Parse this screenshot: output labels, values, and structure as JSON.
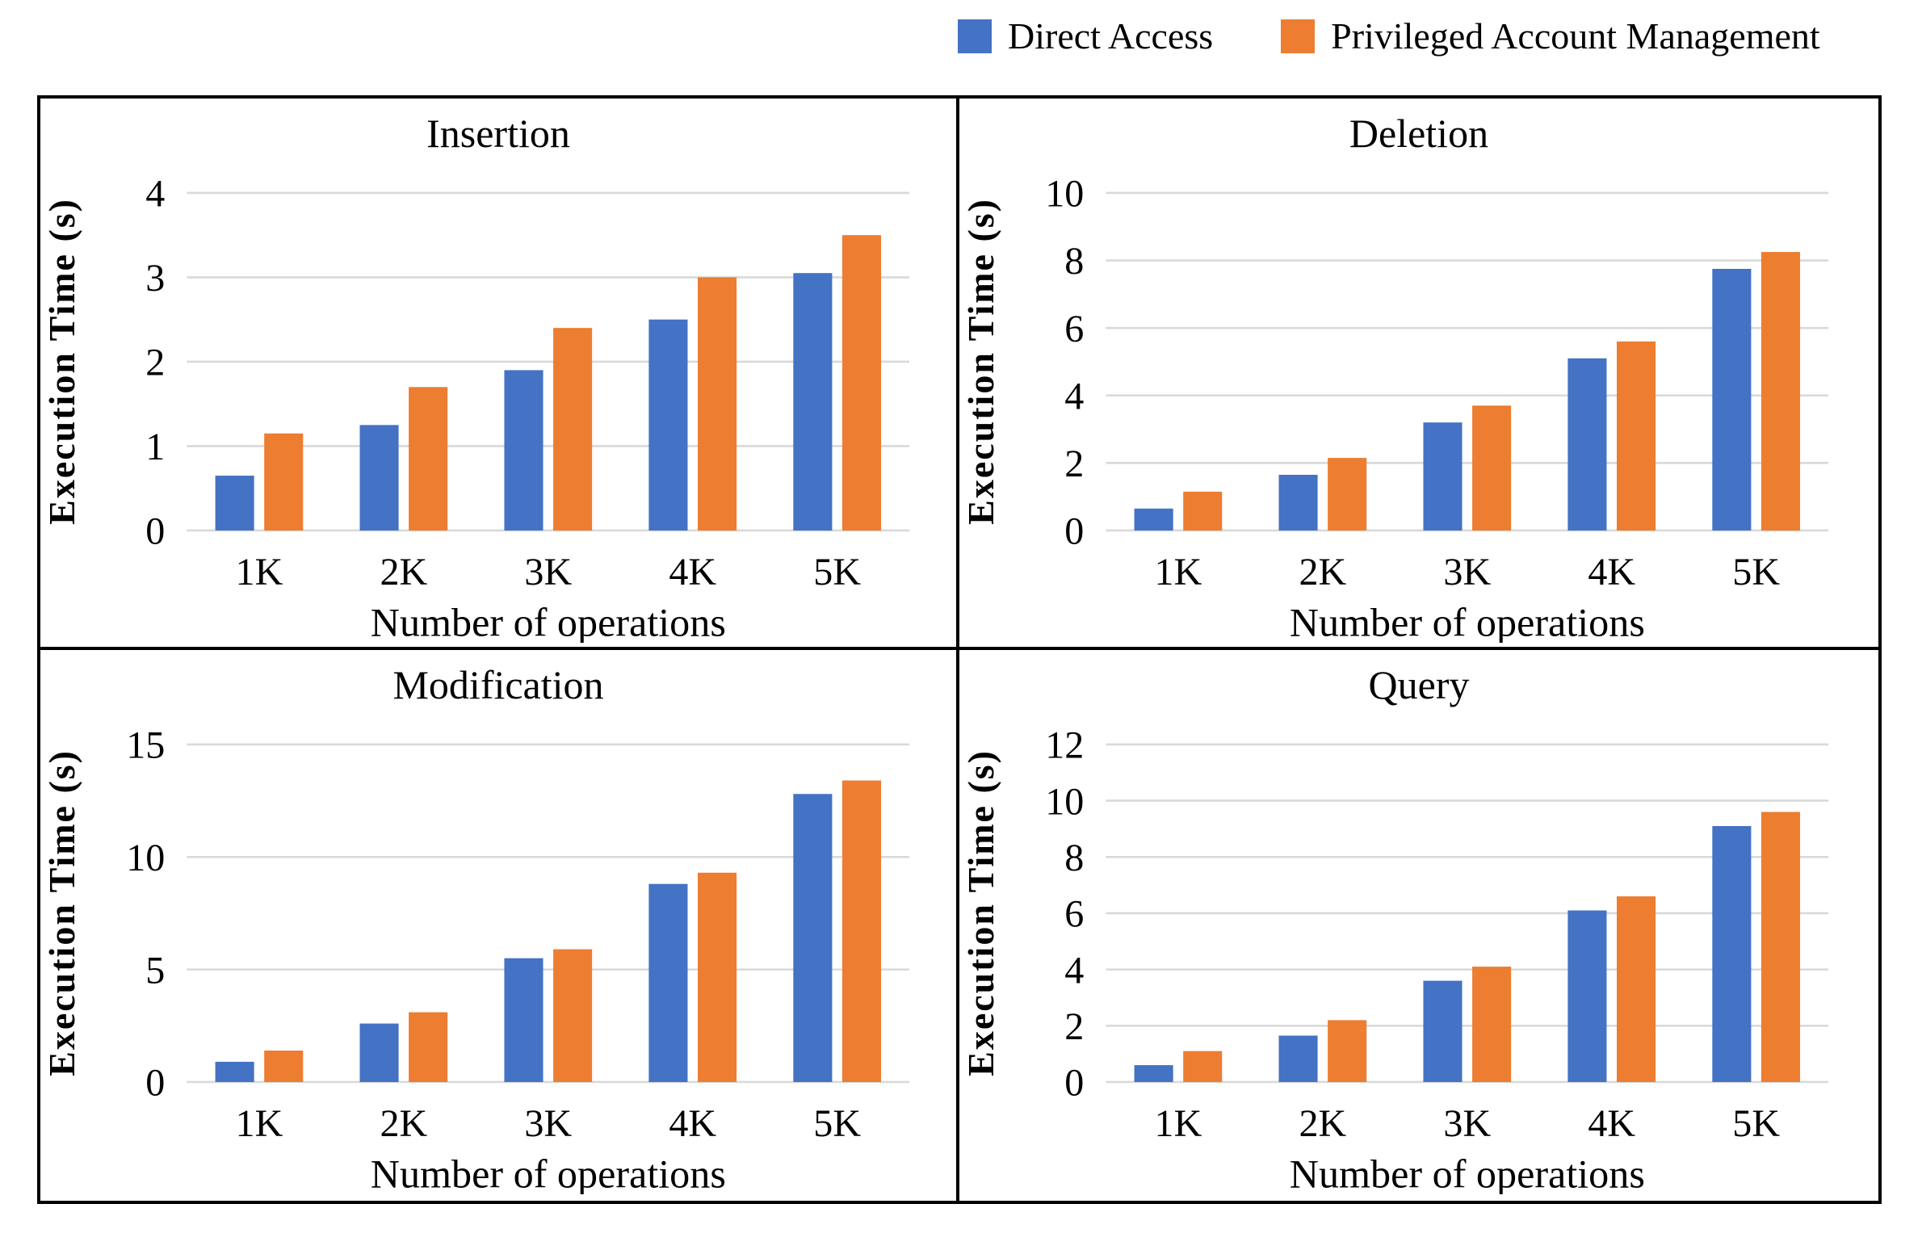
{
  "legend": {
    "items": [
      {
        "label": "Direct Access",
        "color": "#4472C4"
      },
      {
        "label": "Privileged Account Management",
        "color": "#ED7D31"
      }
    ]
  },
  "styles": {
    "series_colors": [
      "#4472C4",
      "#ED7D31"
    ],
    "gridline_color": "#D9D9D9",
    "frame_color": "#000000"
  },
  "chart_data": [
    {
      "type": "bar",
      "title": "Insertion",
      "xlabel": "Number of operations",
      "ylabel": "Execution Time (s)",
      "categories": [
        "1K",
        "2K",
        "3K",
        "4K",
        "5K"
      ],
      "ylim": [
        0,
        4
      ],
      "yticks": [
        0,
        1,
        2,
        3,
        4
      ],
      "grid": "horizontal",
      "legend_position": "top",
      "series": [
        {
          "name": "Direct Access",
          "values": [
            0.65,
            1.25,
            1.9,
            2.5,
            3.05
          ]
        },
        {
          "name": "Privileged Account Management",
          "values": [
            1.15,
            1.7,
            2.4,
            3.0,
            3.5
          ]
        }
      ]
    },
    {
      "type": "bar",
      "title": "Deletion",
      "xlabel": "Number of operations",
      "ylabel": "Execution Time (s)",
      "categories": [
        "1K",
        "2K",
        "3K",
        "4K",
        "5K"
      ],
      "ylim": [
        0,
        10
      ],
      "yticks": [
        0,
        2,
        4,
        6,
        8,
        10
      ],
      "grid": "horizontal",
      "legend_position": "top",
      "series": [
        {
          "name": "Direct Access",
          "values": [
            0.65,
            1.65,
            3.2,
            5.1,
            7.75
          ]
        },
        {
          "name": "Privileged Account Management",
          "values": [
            1.15,
            2.15,
            3.7,
            5.6,
            8.25
          ]
        }
      ]
    },
    {
      "type": "bar",
      "title": "Modification",
      "xlabel": "Number of operations",
      "ylabel": "Execution Time (s)",
      "categories": [
        "1K",
        "2K",
        "3K",
        "4K",
        "5K"
      ],
      "ylim": [
        0,
        15
      ],
      "yticks": [
        0,
        5,
        10,
        15
      ],
      "grid": "horizontal",
      "legend_position": "top",
      "series": [
        {
          "name": "Direct Access",
          "values": [
            0.9,
            2.6,
            5.5,
            8.8,
            12.8
          ]
        },
        {
          "name": "Privileged Account Management",
          "values": [
            1.4,
            3.1,
            5.9,
            9.3,
            13.4
          ]
        }
      ]
    },
    {
      "type": "bar",
      "title": "Query",
      "xlabel": "Number of operations",
      "ylabel": "Execution Time (s)",
      "categories": [
        "1K",
        "2K",
        "3K",
        "4K",
        "5K"
      ],
      "ylim": [
        0,
        12
      ],
      "yticks": [
        0,
        2,
        4,
        6,
        8,
        10,
        12
      ],
      "grid": "horizontal",
      "legend_position": "top",
      "series": [
        {
          "name": "Direct Access",
          "values": [
            0.6,
            1.65,
            3.6,
            6.1,
            9.1
          ]
        },
        {
          "name": "Privileged Account Management",
          "values": [
            1.1,
            2.2,
            4.1,
            6.6,
            9.6
          ]
        }
      ]
    }
  ]
}
